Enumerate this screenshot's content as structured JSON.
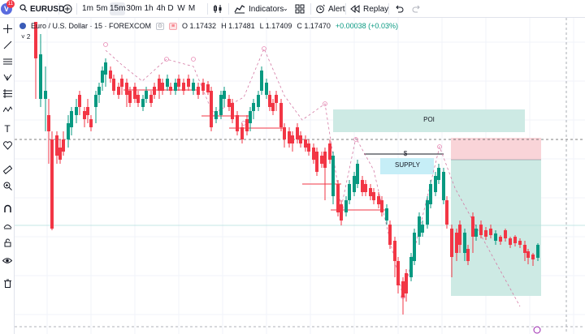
{
  "header": {
    "notification_count": "11",
    "symbol": "EURUSD",
    "timeframes": [
      {
        "label": "1m",
        "active": false
      },
      {
        "label": "5m",
        "active": false
      },
      {
        "label": "15m",
        "active": true
      },
      {
        "label": "30m",
        "active": false
      },
      {
        "label": "1h",
        "active": false
      },
      {
        "label": "4h",
        "active": false
      },
      {
        "label": "D",
        "active": false
      },
      {
        "label": "W",
        "active": false
      },
      {
        "label": "M",
        "active": false
      }
    ],
    "indicators_label": "Indicators",
    "alert_label": "Alert",
    "replay_label": "Replay"
  },
  "legend": {
    "title": "Euro / U.S. Dollar · 15 · FOREXCOM",
    "open": "O 1.17432",
    "high": "H 1.17481",
    "low": "L 1.17409",
    "close": "C 1.17470",
    "change": "+0.00038 (+0.03%)",
    "collapse": "2"
  },
  "zones": {
    "poi_label": "POI",
    "supply_label": "SUPPLY",
    "dollar_label": "$"
  },
  "sidebar_icons": [
    "crosshair-icon",
    "trend-line-icon",
    "horizontal-lines-icon",
    "pitchfork-icon",
    "fib-retracement-icon",
    "pattern-icon",
    "text-icon",
    "heart-icon",
    "ruler-icon",
    "zoom-icon",
    "magnet-icon",
    "lock-icon",
    "drawing-lock-icon",
    "eye-icon",
    "trash-icon"
  ],
  "colors": {
    "up": "#089981",
    "down": "#f23645",
    "poi_zone": "#cdeae4",
    "supply_zone": "#c6eef7",
    "stop_zone": "#f9d4d8",
    "target_zone": "#cdeae4"
  }
}
